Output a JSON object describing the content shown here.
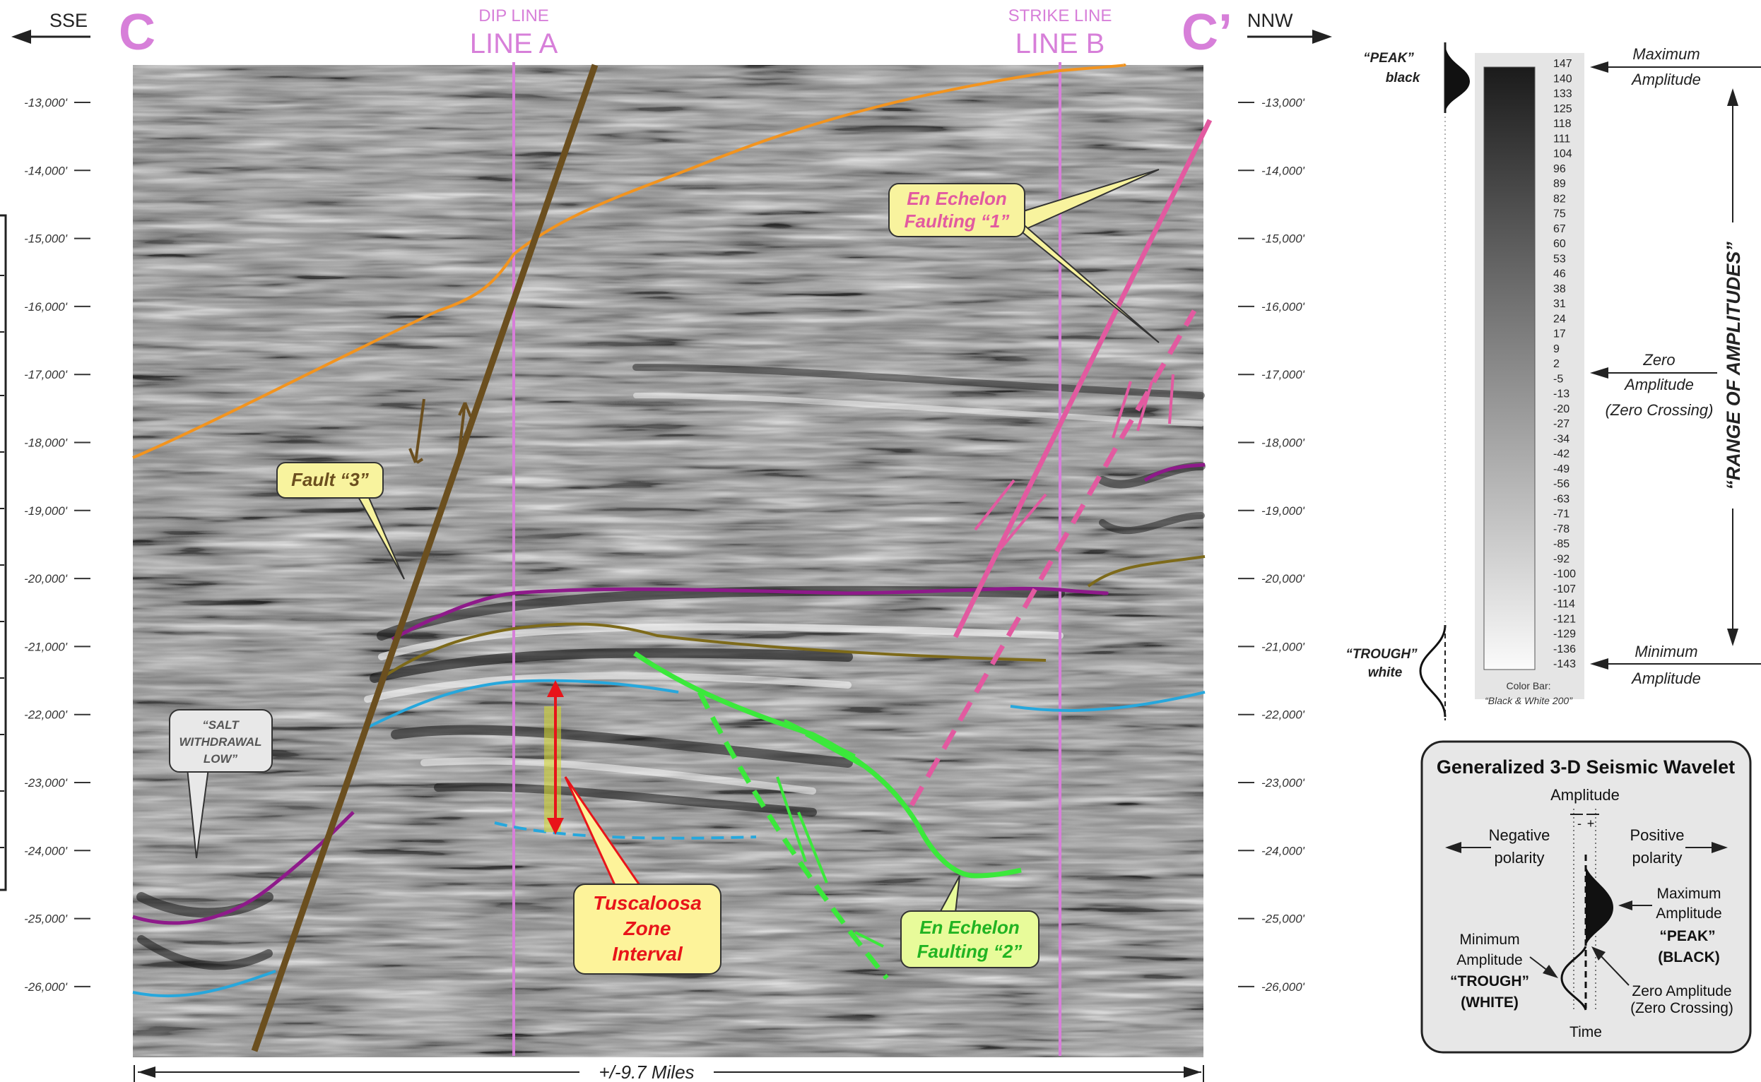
{
  "section": {
    "left_direction": "SSE",
    "right_direction": "NNW",
    "left_letter": "C",
    "right_letter": "C’",
    "dip_line_small": "DIP LINE",
    "dip_line_big": "LINE A",
    "strike_line_small": "STRIKE LINE",
    "strike_line_big": "LINE B",
    "scale_label": "+/-9.7 Miles"
  },
  "depth_labels": [
    "-13,000'",
    "-14,000'",
    "-15,000'",
    "-16,000'",
    "-17,000'",
    "-18,000'",
    "-19,000'",
    "-20,000'",
    "-21,000'",
    "-22,000'",
    "-23,000'",
    "-24,000'",
    "-25,000'",
    "-26,000'"
  ],
  "callouts": {
    "fault3": "Fault “3”",
    "en_echelon_1": [
      "En Echelon",
      "Faulting “1”"
    ],
    "en_echelon_2": [
      "En Echelon",
      "Faulting “2”"
    ],
    "tuscaloosa": [
      "Tuscaloosa",
      "Zone",
      "Interval"
    ],
    "salt": [
      "“SALT",
      "WITHDRAWAL",
      "LOW”"
    ]
  },
  "colorbar": {
    "values": [
      "147",
      "140",
      "133",
      "125",
      "118",
      "111",
      "104",
      "96",
      "89",
      "82",
      "75",
      "67",
      "60",
      "53",
      "46",
      "38",
      "31",
      "24",
      "17",
      "9",
      "2",
      "-5",
      "-13",
      "-20",
      "-27",
      "-34",
      "-42",
      "-49",
      "-56",
      "-63",
      "-71",
      "-78",
      "-85",
      "-92",
      "-100",
      "-107",
      "-114",
      "-121",
      "-129",
      "-136",
      "-143"
    ],
    "caption_1": "Color Bar:",
    "caption_2": "“Black & White 200”",
    "peak_label_1": "“PEAK”",
    "peak_label_2": "black",
    "trough_label_1": "“TROUGH”",
    "trough_label_2": "white",
    "max_label_1": "Maximum",
    "max_label_2": "Amplitude",
    "zero_label_1": "Zero",
    "zero_label_2": "Amplitude",
    "zero_label_3": "(Zero Crossing)",
    "min_label_1": "Minimum",
    "min_label_2": "Amplitude",
    "range_label": "“RANGE OF AMPLITUDES”"
  },
  "wavelet": {
    "title": "Generalized 3-D Seismic Wavelet",
    "amplitude": "Amplitude",
    "minus": "-",
    "plus": "+",
    "negative_1": "Negative",
    "negative_2": "polarity",
    "positive_1": "Positive",
    "positive_2": "polarity",
    "max_1": "Maximum",
    "max_2": "Amplitude",
    "peak": "“PEAK”",
    "black": "(BLACK)",
    "min_1": "Minimum",
    "min_2": "Amplitude",
    "trough": "“TROUGH”",
    "white": "(WHITE)",
    "zero_1": "Zero Amplitude",
    "zero_2": "(Zero Crossing)",
    "time": "Time"
  },
  "colors": {
    "line_markers": "#d77fd9",
    "orange_horizon": "#f2941f",
    "purple_horizon": "#8e1a8a",
    "olive_horizon": "#7d6a1a",
    "blue_horizon": "#27a7dc",
    "fault3": "#6b4f1f",
    "pink_fault": "#e25aa0",
    "green_fault": "#3be83b",
    "tuscaloosa_arrow": "#e8141a"
  }
}
